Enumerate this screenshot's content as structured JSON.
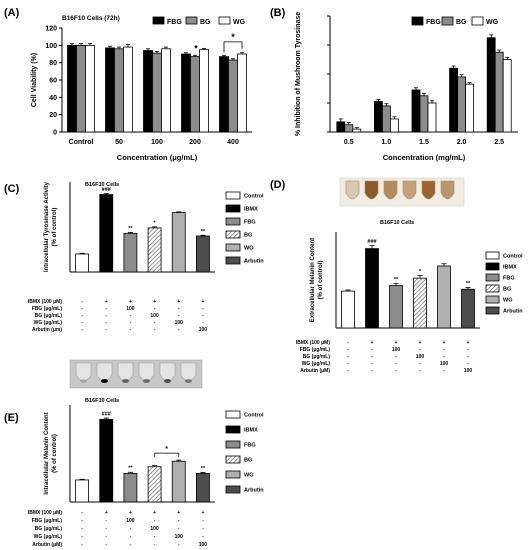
{
  "colors": {
    "black": "#000000",
    "dark_gray": "#4d4d4d",
    "gray": "#8c8c8c",
    "light_gray": "#b0b0b0",
    "white": "#ffffff",
    "photo_bg": "#6f6f6f"
  },
  "chart_data": [
    {
      "panel": "(A)",
      "type": "bar",
      "title": "B16F10 Cells (72h)",
      "xlabel": "Concentration (μg/mL)",
      "ylabel": "Cell Viability (%)",
      "ylim": [
        0,
        120
      ],
      "yticks": [
        "0",
        "20",
        "40",
        "60",
        "80",
        "100",
        "120"
      ],
      "categories": [
        "Control",
        "50",
        "100",
        "200",
        "400"
      ],
      "series": [
        {
          "name": "FBG",
          "values": [
            100,
            97,
            94,
            90,
            87
          ],
          "errors": [
            2,
            2,
            2,
            1.5,
            1.5
          ]
        },
        {
          "name": "BG",
          "values": [
            100,
            96,
            91,
            87,
            83
          ],
          "errors": [
            2,
            2,
            2,
            1.5,
            1.5
          ]
        },
        {
          "name": "WG",
          "values": [
            100,
            98,
            96,
            95,
            90
          ],
          "errors": [
            2,
            3,
            2,
            1.5,
            1.5
          ]
        }
      ],
      "annotations": [
        "*",
        "*"
      ]
    },
    {
      "panel": "(B)",
      "type": "bar",
      "xlabel": "Concentration (mg/mL)",
      "ylabel": "% Inhibition of Mushroom Tyrosinase",
      "ylim": [
        0,
        80
      ],
      "categories": [
        "0.5",
        "1.0",
        "1.5",
        "2.0",
        "2.5"
      ],
      "series": [
        {
          "name": "FBG",
          "values": [
            7,
            21,
            29,
            44,
            65
          ],
          "errors": [
            2,
            1.5,
            1.5,
            1.5,
            2
          ]
        },
        {
          "name": "BG",
          "values": [
            5,
            18,
            25,
            38,
            55
          ],
          "errors": [
            1.5,
            1.5,
            1.5,
            1.5,
            1.5
          ]
        },
        {
          "name": "WG",
          "values": [
            2,
            9,
            20,
            33,
            50
          ],
          "errors": [
            1,
            1.5,
            1.5,
            1,
            1.5
          ]
        }
      ]
    },
    {
      "panel": "(C)",
      "type": "bar",
      "title": "B16F10 Cells",
      "ylabel": "Intracellular Tyrosinase Activity (% of control)",
      "categories": [
        "Control",
        "IBMX",
        "FBG",
        "BG",
        "WG",
        "Arbutin"
      ],
      "values": [
        100,
        430,
        215,
        245,
        330,
        200
      ],
      "errors": [
        4,
        6,
        5,
        6,
        4,
        4
      ],
      "ylim": [
        0,
        500
      ],
      "sig": [
        "",
        "###",
        "**",
        "*",
        "",
        "**"
      ],
      "legend": [
        "Control",
        "IBMX",
        "FBG",
        "BG",
        "WG",
        "Arbutin"
      ],
      "treatment_table": {
        "rows": [
          "IBMX (100 μM)",
          "FBG (μg/mL)",
          "BG (μg/mL)",
          "WG (μg/mL)",
          "Arbutin (μm)"
        ],
        "cells": [
          [
            "-",
            "+",
            "+",
            "+",
            "+",
            "+"
          ],
          [
            "-",
            "-",
            "100",
            "-",
            "-",
            "-"
          ],
          [
            "-",
            "-",
            "-",
            "100",
            "-",
            "-"
          ],
          [
            "-",
            "-",
            "-",
            "-",
            "100",
            "-"
          ],
          [
            "-",
            "-",
            "-",
            "-",
            "-",
            "100"
          ]
        ]
      }
    },
    {
      "panel": "(D)",
      "type": "bar",
      "title": "B16F10 Cells",
      "ylabel": "Extracellular Melanin Content (% of control)",
      "categories": [
        "Control",
        "IBMX",
        "FBG",
        "BG",
        "WG",
        "Arbutin"
      ],
      "values": [
        100,
        215,
        115,
        135,
        168,
        105
      ],
      "errors": [
        3,
        8,
        6,
        7,
        6,
        5
      ],
      "ylim": [
        0,
        260
      ],
      "sig": [
        "",
        "###",
        "**",
        "*",
        "",
        "**"
      ],
      "legend": [
        "Control",
        "IBMX",
        "FBG",
        "BG",
        "WG",
        "Arbutin"
      ],
      "treatment_table": {
        "rows": [
          "IBMX (100 μM)",
          "FBG (μg/mL)",
          "BG (μg/mL)",
          "WG (μg/mL)",
          "Arbutin (μM)"
        ],
        "cells": [
          [
            "-",
            "+",
            "+",
            "+",
            "+",
            "+"
          ],
          [
            "-",
            "-",
            "100",
            "-",
            "-",
            "-"
          ],
          [
            "-",
            "-",
            "-",
            "100",
            "-",
            "-"
          ],
          [
            "-",
            "-",
            "-",
            "-",
            "100",
            "-"
          ],
          [
            "-",
            "-",
            "-",
            "-",
            "-",
            "100"
          ]
        ]
      }
    },
    {
      "panel": "(E)",
      "type": "bar",
      "title": "B16F10 Cells",
      "ylabel": "Intracellular Melanin Content (% of control)",
      "categories": [
        "Control",
        "IBMX",
        "FBG",
        "BG",
        "WG",
        "Arbutin"
      ],
      "values": [
        100,
        375,
        130,
        160,
        185,
        130
      ],
      "errors": [
        3,
        6,
        5,
        5,
        5,
        4
      ],
      "ylim": [
        0,
        440
      ],
      "sig": [
        "",
        "###",
        "**",
        "",
        "",
        "**"
      ],
      "bracket": "*",
      "legend": [
        "Control",
        "IBMX",
        "FBG",
        "BG",
        "WG",
        "Arbutin"
      ],
      "treatment_table": {
        "rows": [
          "IBMX (100 μM)",
          "FBG (μg/mL)",
          "BG (μg/mL)",
          "WG (μg/mL)",
          "Arbutin (μM)"
        ],
        "cells": [
          [
            "-",
            "+",
            "+",
            "+",
            "+",
            "+"
          ],
          [
            "-",
            "-",
            "100",
            "-",
            "-",
            "-"
          ],
          [
            "-",
            "-",
            "-",
            "100",
            "-",
            "-"
          ],
          [
            "-",
            "-",
            "-",
            "-",
            "100",
            "-"
          ],
          [
            "-",
            "-",
            "-",
            "-",
            "-",
            "100"
          ]
        ]
      }
    }
  ]
}
